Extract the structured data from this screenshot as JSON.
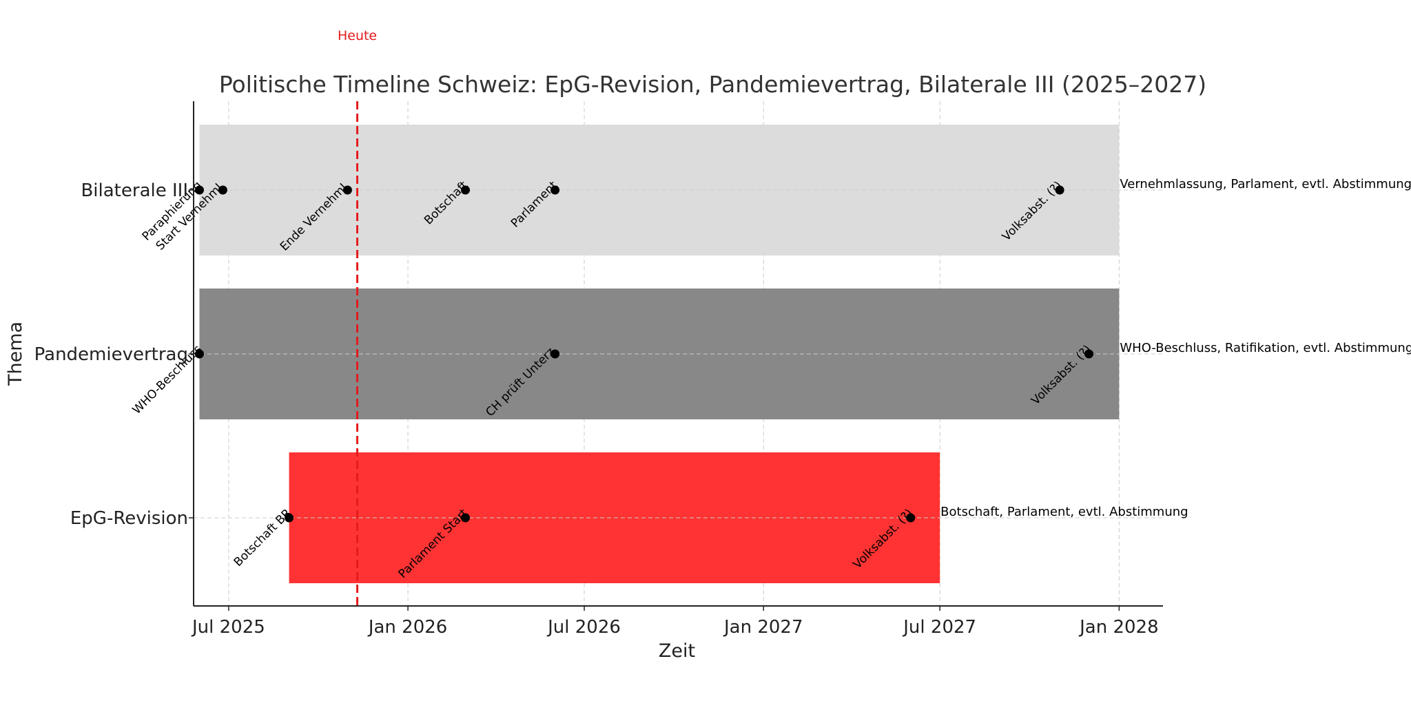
{
  "chart_data": {
    "type": "timeline",
    "title": "Politische Timeline Schweiz: EpG-Revision, Pandemievertrag, Bilaterale III (2025–2027)",
    "xlabel": "Zeit",
    "ylabel": "Thema",
    "xlim": [
      "2025-05-26",
      "2028-02-15"
    ],
    "x_ticks": [
      {
        "date": "2025-07-01",
        "label": "Jul 2025"
      },
      {
        "date": "2026-01-01",
        "label": "Jan 2026"
      },
      {
        "date": "2026-07-01",
        "label": "Jul 2026"
      },
      {
        "date": "2027-01-01",
        "label": "Jan 2027"
      },
      {
        "date": "2027-07-01",
        "label": "Jul 2027"
      },
      {
        "date": "2028-01-01",
        "label": "Jan 2028"
      }
    ],
    "grid": true,
    "today": {
      "date": "2025-11-10",
      "label": "Heute",
      "color": "#e41a1c"
    },
    "rows": [
      {
        "name": "Bilaterale III",
        "color": "#dcdcdc",
        "start": "2025-06-01",
        "end": "2028-01-01",
        "note": "Vernehmlassung, Parlament, evtl. Abstimmung",
        "events": [
          {
            "date": "2025-06-01",
            "label": "Paraphierung"
          },
          {
            "date": "2025-06-25",
            "label": "Start Vernehml."
          },
          {
            "date": "2025-10-31",
            "label": "Ende Vernehml."
          },
          {
            "date": "2026-03-01",
            "label": "Botschaft"
          },
          {
            "date": "2026-06-01",
            "label": "Parlament"
          },
          {
            "date": "2027-11-01",
            "label": "Volksabst. (?)"
          }
        ]
      },
      {
        "name": "Pandemievertrag",
        "color": "#888888",
        "start": "2025-06-01",
        "end": "2028-01-01",
        "note": "WHO-Beschluss, Ratifikation, evtl. Abstimmung",
        "events": [
          {
            "date": "2025-06-01",
            "label": "WHO-Beschluss"
          },
          {
            "date": "2026-06-01",
            "label": "CH prüft Unterz."
          },
          {
            "date": "2027-12-01",
            "label": "Volksabst. (?)"
          }
        ]
      },
      {
        "name": "EpG-Revision",
        "color": "#ff3333",
        "start": "2025-09-01",
        "end": "2027-07-01",
        "note": "Botschaft, Parlament, evtl. Abstimmung",
        "events": [
          {
            "date": "2025-09-01",
            "label": "Botschaft BR"
          },
          {
            "date": "2026-03-01",
            "label": "Parlament Start"
          },
          {
            "date": "2027-06-01",
            "label": "Volksabst. (?)"
          }
        ]
      }
    ]
  }
}
